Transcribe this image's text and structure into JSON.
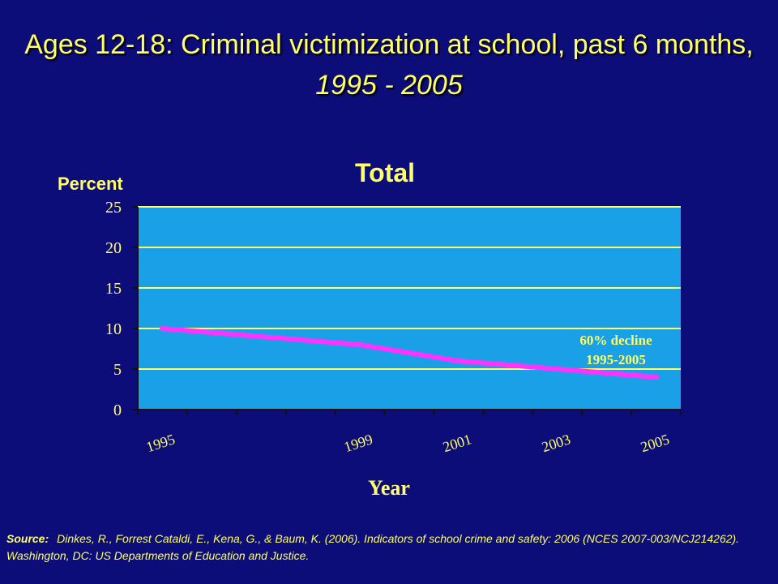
{
  "title": {
    "main": "Ages 12-18: Criminal victimization at school, past 6 months,",
    "range": "1995 - 2005"
  },
  "source": {
    "label": "Source:",
    "text": "Dinkes, R., Forrest Cataldi, E., Kena, G., & Baum, K. (2006). Indicators of school crime and safety: 2006 (NCES 2007-003/NCJ214262). Washington, DC: US Departments of Education and Justice."
  },
  "colors": {
    "background": "#0d0d7a",
    "plot_area": "#1aa0e6",
    "text_yellow": "#ffff66",
    "series_line": "#ff33ff",
    "grid": "#ffff66"
  },
  "chart_data": {
    "type": "line",
    "title": "Total",
    "xlabel": "Year",
    "ylabel": "Percent",
    "ylim": [
      0,
      25
    ],
    "yticks": [
      0,
      5,
      10,
      15,
      20,
      25
    ],
    "xlim": [
      1995,
      2005
    ],
    "xtick_labels": [
      "1995",
      "1999",
      "2001",
      "2003",
      "2005"
    ],
    "grid": true,
    "series": [
      {
        "x": [
          1995,
          1997,
          1999,
          2001,
          2003,
          2005
        ],
        "y": [
          10,
          9,
          8,
          6,
          5,
          4
        ]
      }
    ],
    "annotation": {
      "line1": "60% decline",
      "line2": "1995-2005"
    }
  }
}
